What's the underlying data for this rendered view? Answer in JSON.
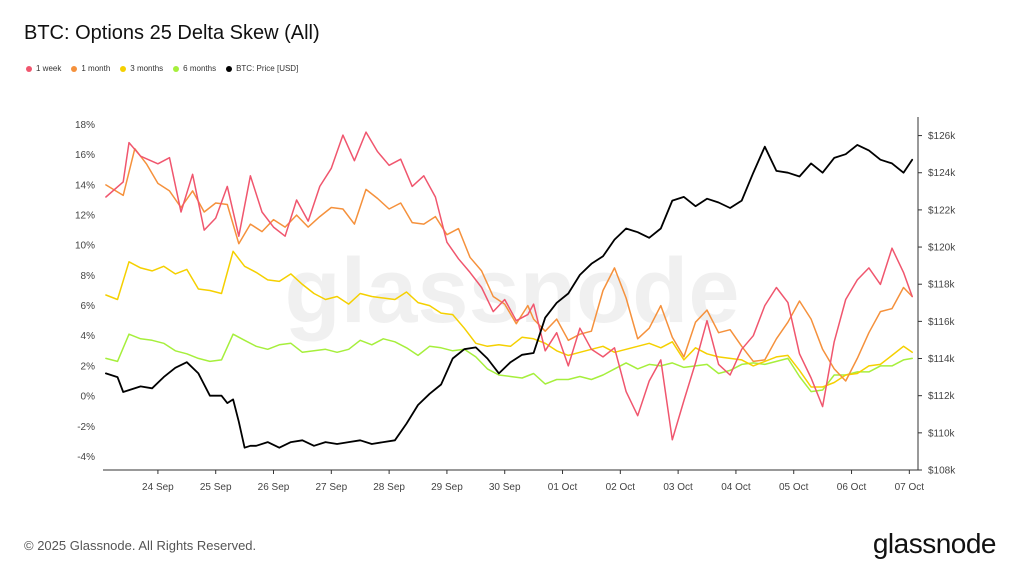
{
  "header": {
    "title": "BTC: Options 25 Delta Skew (All)"
  },
  "footer": {
    "copyright": "© 2025 Glassnode. All Rights Reserved.",
    "brand": "glassnode"
  },
  "watermark": "glassnode",
  "colors": {
    "1w": "#f0566e",
    "1m": "#f5913c",
    "3m": "#f5d000",
    "6m": "#a6ef3c",
    "price": "#000000",
    "grid": "#dddddd",
    "axis": "#333333"
  },
  "chart_data": {
    "type": "line",
    "title": "BTC: Options 25 Delta Skew (All)",
    "legend_position": "top-left",
    "grid": false,
    "x_labels": [
      "24 Sep",
      "25 Sep",
      "26 Sep",
      "27 Sep",
      "28 Sep",
      "29 Sep",
      "30 Sep",
      "01 Oct",
      "02 Oct",
      "03 Oct",
      "04 Oct",
      "05 Oct",
      "06 Oct",
      "07 Oct"
    ],
    "x_range": [
      23.55,
      37.65
    ],
    "y_left": {
      "range": [
        -4.9,
        18.5
      ],
      "ticks": [
        18,
        16,
        14,
        12,
        10,
        8,
        6,
        4,
        2,
        0,
        -2,
        -4
      ],
      "tick_labels": [
        "18%",
        "16%",
        "14%",
        "12%",
        "10%",
        "8%",
        "6%",
        "4%",
        "2%",
        "0%",
        "-2%",
        "-4%"
      ]
    },
    "y_right": {
      "range": [
        108000,
        127000
      ],
      "ticks": [
        126000,
        124000,
        122000,
        120000,
        118000,
        116000,
        114000,
        112000,
        110000,
        108000
      ],
      "tick_labels": [
        "$126k",
        "$124k",
        "$122k",
        "$120k",
        "$118k",
        "$116k",
        "$114k",
        "$112k",
        "$110k",
        "$108k"
      ]
    },
    "x_label_key": "day",
    "series": [
      {
        "name": "1 week",
        "key": "1w",
        "axis": "left",
        "x": [
          23.6,
          23.9,
          24.0,
          24.2,
          24.5,
          24.7,
          24.9,
          25.1,
          25.3,
          25.5,
          25.7,
          25.9,
          26.1,
          26.3,
          26.5,
          26.7,
          26.9,
          27.1,
          27.3,
          27.5,
          27.7,
          27.9,
          28.1,
          28.3,
          28.5,
          28.7,
          28.9,
          29.1,
          29.3,
          29.5,
          29.7,
          29.9,
          30.1,
          30.3,
          30.5,
          30.7,
          30.9,
          31.0,
          31.2,
          31.4,
          31.6,
          31.8,
          32.0,
          32.2,
          32.4,
          32.6,
          32.8,
          33.0,
          33.2,
          33.4,
          33.6,
          33.8,
          34.0,
          34.2,
          34.4,
          34.6,
          34.8,
          35.0,
          35.2,
          35.4,
          35.6,
          35.8,
          36.0,
          36.2,
          36.4,
          36.6,
          36.8,
          37.0,
          37.2,
          37.4,
          37.55
        ],
        "y": [
          13.2,
          14.2,
          16.8,
          15.9,
          15.4,
          15.8,
          12.2,
          14.7,
          11.0,
          11.8,
          13.9,
          10.6,
          14.6,
          12.2,
          11.2,
          10.6,
          13.0,
          11.6,
          13.9,
          15.1,
          17.3,
          15.6,
          17.5,
          16.2,
          15.3,
          15.7,
          13.9,
          14.6,
          13.2,
          10.2,
          9.1,
          8.2,
          7.2,
          5.6,
          6.4,
          5.0,
          5.4,
          6.1,
          3.0,
          4.2,
          2.0,
          4.5,
          3.1,
          2.6,
          3.2,
          0.3,
          -1.3,
          1.0,
          2.4,
          -2.9,
          -0.3,
          2.2,
          5.0,
          2.1,
          1.4,
          3.1,
          4.0,
          6.0,
          7.2,
          6.2,
          2.8,
          1.2,
          -0.7,
          3.6,
          6.4,
          7.7,
          8.5,
          7.4,
          9.8,
          8.2,
          6.6
        ]
      },
      {
        "name": "1 month",
        "key": "1m",
        "axis": "left",
        "x": [
          23.6,
          23.9,
          24.1,
          24.3,
          24.5,
          24.7,
          24.9,
          25.1,
          25.3,
          25.5,
          25.7,
          25.9,
          26.1,
          26.3,
          26.5,
          26.7,
          26.9,
          27.1,
          27.3,
          27.5,
          27.7,
          27.9,
          28.1,
          28.3,
          28.5,
          28.7,
          28.9,
          29.1,
          29.3,
          29.5,
          29.7,
          29.9,
          30.1,
          30.3,
          30.5,
          30.7,
          30.9,
          31.0,
          31.2,
          31.4,
          31.6,
          31.8,
          32.0,
          32.2,
          32.4,
          32.6,
          32.8,
          33.0,
          33.2,
          33.4,
          33.6,
          33.8,
          34.0,
          34.2,
          34.4,
          34.6,
          34.8,
          35.0,
          35.2,
          35.4,
          35.6,
          35.8,
          36.0,
          36.2,
          36.4,
          36.6,
          36.8,
          37.0,
          37.2,
          37.4,
          37.55
        ],
        "y": [
          14.0,
          13.3,
          16.4,
          15.4,
          14.1,
          13.6,
          12.5,
          13.6,
          12.2,
          12.8,
          12.7,
          10.1,
          11.4,
          10.9,
          11.7,
          11.2,
          12.0,
          11.2,
          11.9,
          12.5,
          12.4,
          11.4,
          13.7,
          13.1,
          12.4,
          12.8,
          11.5,
          11.4,
          11.9,
          10.7,
          11.1,
          9.2,
          8.3,
          6.6,
          6.1,
          4.8,
          6.0,
          5.1,
          4.3,
          5.1,
          3.7,
          4.1,
          4.3,
          7.0,
          8.5,
          6.5,
          3.8,
          4.5,
          6.0,
          3.9,
          2.6,
          4.9,
          5.7,
          4.2,
          4.4,
          3.3,
          2.3,
          2.4,
          3.8,
          4.9,
          6.3,
          5.1,
          3.1,
          1.8,
          1.0,
          2.5,
          4.2,
          5.6,
          5.8,
          7.2,
          6.6
        ]
      },
      {
        "name": "3 months",
        "key": "3m",
        "axis": "left",
        "x": [
          23.6,
          23.8,
          24.0,
          24.2,
          24.4,
          24.6,
          24.8,
          25.0,
          25.2,
          25.4,
          25.6,
          25.8,
          26.0,
          26.2,
          26.4,
          26.6,
          26.8,
          27.0,
          27.2,
          27.4,
          27.6,
          27.8,
          28.0,
          28.2,
          28.4,
          28.6,
          28.8,
          29.0,
          29.2,
          29.4,
          29.6,
          29.8,
          30.0,
          30.2,
          30.4,
          30.6,
          30.8,
          31.0,
          31.2,
          31.4,
          31.6,
          31.8,
          32.0,
          32.2,
          32.4,
          32.6,
          32.8,
          33.0,
          33.2,
          33.4,
          33.6,
          33.8,
          34.0,
          34.2,
          34.4,
          34.6,
          34.8,
          35.0,
          35.2,
          35.4,
          35.6,
          35.8,
          36.0,
          36.2,
          36.4,
          36.6,
          36.8,
          37.0,
          37.2,
          37.4,
          37.55
        ],
        "y": [
          6.7,
          6.4,
          8.9,
          8.5,
          8.3,
          8.6,
          8.1,
          8.4,
          7.1,
          7.0,
          6.8,
          9.6,
          8.6,
          8.2,
          7.7,
          7.6,
          8.1,
          7.4,
          6.8,
          6.4,
          6.6,
          6.1,
          6.8,
          6.6,
          6.5,
          6.4,
          6.9,
          6.2,
          6.0,
          5.5,
          5.4,
          4.5,
          3.5,
          3.3,
          3.4,
          3.3,
          3.9,
          3.8,
          3.5,
          3.0,
          2.7,
          2.9,
          3.1,
          3.3,
          2.9,
          3.1,
          3.3,
          3.5,
          3.2,
          3.6,
          2.4,
          3.2,
          2.8,
          2.6,
          2.5,
          2.4,
          2.0,
          2.3,
          2.6,
          2.7,
          1.7,
          0.6,
          0.6,
          0.9,
          1.4,
          1.5,
          2.0,
          2.1,
          2.7,
          3.3,
          2.9
        ]
      },
      {
        "name": "6 months",
        "key": "6m",
        "axis": "left",
        "x": [
          23.6,
          23.8,
          24.0,
          24.2,
          24.4,
          24.6,
          24.8,
          25.0,
          25.2,
          25.4,
          25.6,
          25.8,
          26.0,
          26.2,
          26.4,
          26.6,
          26.8,
          27.0,
          27.2,
          27.4,
          27.6,
          27.8,
          28.0,
          28.2,
          28.4,
          28.6,
          28.8,
          29.0,
          29.2,
          29.4,
          29.6,
          29.8,
          30.0,
          30.2,
          30.4,
          30.6,
          30.8,
          31.0,
          31.2,
          31.4,
          31.6,
          31.8,
          32.0,
          32.2,
          32.4,
          32.6,
          32.8,
          33.0,
          33.2,
          33.4,
          33.6,
          33.8,
          34.0,
          34.2,
          34.4,
          34.6,
          34.8,
          35.0,
          35.2,
          35.4,
          35.6,
          35.8,
          36.0,
          36.2,
          36.4,
          36.6,
          36.8,
          37.0,
          37.2,
          37.4,
          37.55
        ],
        "y": [
          2.5,
          2.3,
          4.1,
          3.8,
          3.7,
          3.5,
          3.0,
          2.8,
          2.5,
          2.3,
          2.4,
          4.1,
          3.7,
          3.3,
          3.1,
          3.4,
          3.5,
          2.9,
          3.0,
          3.1,
          2.9,
          3.1,
          3.7,
          3.4,
          3.8,
          3.6,
          3.2,
          2.7,
          3.3,
          3.2,
          3.0,
          3.1,
          2.6,
          1.8,
          1.4,
          1.3,
          1.2,
          1.5,
          0.8,
          1.1,
          1.1,
          1.3,
          1.1,
          1.4,
          1.8,
          2.2,
          1.8,
          2.1,
          2.0,
          2.2,
          1.9,
          2.0,
          2.1,
          1.5,
          1.7,
          2.1,
          2.2,
          2.1,
          2.3,
          2.5,
          1.3,
          0.3,
          0.4,
          1.4,
          1.4,
          1.6,
          1.6,
          2.0,
          2.0,
          2.4,
          2.5
        ]
      },
      {
        "name": "BTC: Price [USD]",
        "key": "price",
        "axis": "right",
        "x": [
          23.6,
          23.8,
          23.9,
          24.0,
          24.2,
          24.4,
          24.6,
          24.8,
          25.0,
          25.2,
          25.4,
          25.6,
          25.7,
          25.8,
          25.9,
          26.0,
          26.1,
          26.2,
          26.4,
          26.6,
          26.8,
          27.0,
          27.2,
          27.4,
          27.6,
          27.8,
          28.0,
          28.2,
          28.4,
          28.6,
          28.8,
          29.0,
          29.2,
          29.4,
          29.6,
          29.8,
          30.0,
          30.2,
          30.4,
          30.6,
          30.8,
          31.0,
          31.2,
          31.4,
          31.6,
          31.8,
          32.0,
          32.2,
          32.4,
          32.6,
          32.8,
          33.0,
          33.2,
          33.4,
          33.6,
          33.8,
          34.0,
          34.2,
          34.4,
          34.6,
          34.8,
          35.0,
          35.2,
          35.4,
          35.6,
          35.8,
          36.0,
          36.2,
          36.4,
          36.6,
          36.8,
          37.0,
          37.2,
          37.4,
          37.55
        ],
        "y": [
          113.2,
          113.0,
          112.2,
          112.3,
          112.5,
          112.4,
          113.0,
          113.5,
          113.8,
          113.2,
          112.0,
          112.0,
          111.6,
          111.8,
          110.6,
          109.2,
          109.3,
          109.3,
          109.5,
          109.2,
          109.5,
          109.6,
          109.3,
          109.5,
          109.4,
          109.5,
          109.6,
          109.4,
          109.5,
          109.6,
          110.5,
          111.5,
          112.1,
          112.6,
          114.0,
          114.5,
          114.6,
          114.0,
          113.2,
          113.8,
          114.2,
          114.3,
          116.2,
          117.0,
          117.5,
          118.5,
          119.1,
          119.5,
          120.4,
          121.0,
          120.8,
          120.5,
          121.0,
          122.5,
          122.7,
          122.2,
          122.6,
          122.4,
          122.1,
          122.5,
          124.0,
          125.4,
          124.1,
          124.0,
          123.8,
          124.5,
          124.0,
          124.8,
          125.0,
          125.5,
          125.2,
          124.7,
          124.5,
          124.0,
          124.7
        ]
      }
    ]
  }
}
